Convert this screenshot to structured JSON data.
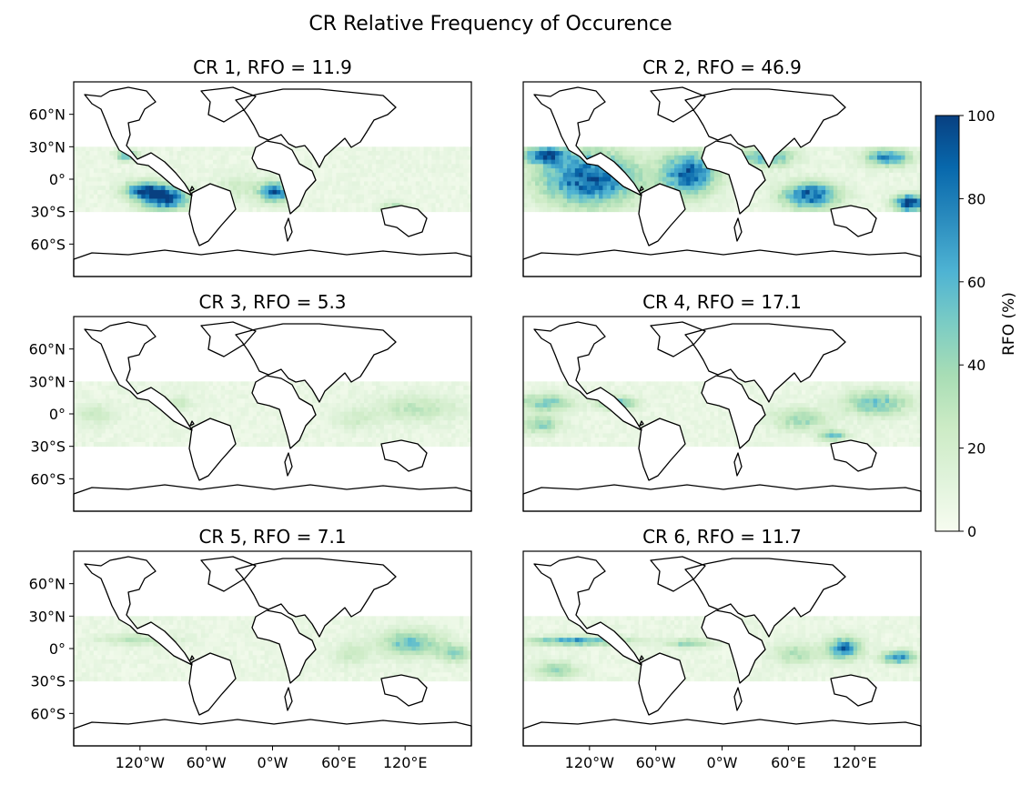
{
  "figure": {
    "suptitle": "CR Relative Frequency of Occurence"
  },
  "chart_data": {
    "type": "heatmap",
    "title": "CR Relative Frequency of Occurence",
    "x_extent": [
      -180,
      180
    ],
    "y_extent": [
      -90,
      90
    ],
    "data_lat_band": [
      -30,
      30
    ],
    "y_ticks": [
      60,
      30,
      0,
      -30,
      -60
    ],
    "y_tick_labels": [
      "60°N",
      "30°N",
      "0°",
      "30°S",
      "60°S"
    ],
    "x_ticks": [
      -120,
      -60,
      0,
      60,
      120
    ],
    "x_tick_labels": [
      "120°W",
      "60°W",
      "0°W",
      "60°E",
      "120°E"
    ],
    "colorbar": {
      "label": "RFO (%)",
      "range": [
        0,
        100
      ],
      "ticks": [
        0,
        20,
        40,
        60,
        80,
        100
      ],
      "colormap": "GnBu",
      "colors": [
        "#f7fcf0",
        "#e0f3db",
        "#ccebc5",
        "#a8ddb5",
        "#7bccc4",
        "#4eb3d3",
        "#2b8cbe",
        "#0868ac",
        "#084081"
      ]
    },
    "panels": [
      {
        "title": "CR 1, RFO = 11.9",
        "rfo": 11.9,
        "high_regions": [
          {
            "lon": -98,
            "lat": -18,
            "rlon": 22,
            "rlat": 10,
            "value": 95
          },
          {
            "lon": -115,
            "lat": -10,
            "rlon": 20,
            "rlat": 8,
            "value": 70
          },
          {
            "lon": 2,
            "lat": -12,
            "rlon": 14,
            "rlat": 9,
            "value": 80
          },
          {
            "lon": -132,
            "lat": 22,
            "rlon": 10,
            "rlat": 5,
            "value": 55
          },
          {
            "lon": 110,
            "lat": -26,
            "rlon": 12,
            "rlat": 4,
            "value": 30
          },
          {
            "lon": -30,
            "lat": -8,
            "rlon": 22,
            "rlat": 12,
            "value": 15
          }
        ]
      },
      {
        "title": "CR 2, RFO = 46.9",
        "rfo": 46.9,
        "high_regions": [
          {
            "lon": -120,
            "lat": 0,
            "rlon": 45,
            "rlat": 25,
            "value": 85
          },
          {
            "lon": -160,
            "lat": 22,
            "rlon": 20,
            "rlat": 8,
            "value": 80
          },
          {
            "lon": -30,
            "lat": 5,
            "rlon": 25,
            "rlat": 20,
            "value": 80
          },
          {
            "lon": 80,
            "lat": -15,
            "rlon": 25,
            "rlat": 12,
            "value": 85
          },
          {
            "lon": 170,
            "lat": -22,
            "rlon": 14,
            "rlat": 8,
            "value": 95
          },
          {
            "lon": 150,
            "lat": 20,
            "rlon": 20,
            "rlat": 8,
            "value": 70
          },
          {
            "lon": 40,
            "lat": 20,
            "rlon": 25,
            "rlat": 8,
            "value": 55
          }
        ]
      },
      {
        "title": "CR 3, RFO = 5.3",
        "rfo": 5.3,
        "high_regions": [
          {
            "lon": 130,
            "lat": 5,
            "rlon": 40,
            "rlat": 12,
            "value": 22
          },
          {
            "lon": -160,
            "lat": 0,
            "rlon": 20,
            "rlat": 10,
            "value": 18
          },
          {
            "lon": -85,
            "lat": 10,
            "rlon": 12,
            "rlat": 6,
            "value": 20
          },
          {
            "lon": 75,
            "lat": -5,
            "rlon": 20,
            "rlat": 10,
            "value": 14
          }
        ]
      },
      {
        "title": "CR 4, RFO = 17.1",
        "rfo": 17.1,
        "high_regions": [
          {
            "lon": -160,
            "lat": 10,
            "rlon": 25,
            "rlat": 8,
            "value": 42
          },
          {
            "lon": -95,
            "lat": 10,
            "rlon": 18,
            "rlat": 6,
            "value": 50
          },
          {
            "lon": -165,
            "lat": -10,
            "rlon": 20,
            "rlat": 8,
            "value": 38
          },
          {
            "lon": 140,
            "lat": 10,
            "rlon": 30,
            "rlat": 12,
            "value": 45
          },
          {
            "lon": 70,
            "lat": -5,
            "rlon": 25,
            "rlat": 10,
            "value": 35
          },
          {
            "lon": 100,
            "lat": -20,
            "rlon": 12,
            "rlat": 5,
            "value": 50
          }
        ]
      },
      {
        "title": "CR 5, RFO = 7.1",
        "rfo": 7.1,
        "high_regions": [
          {
            "lon": 125,
            "lat": 5,
            "rlon": 30,
            "rlat": 12,
            "value": 45
          },
          {
            "lon": 165,
            "lat": -5,
            "rlon": 15,
            "rlat": 8,
            "value": 38
          },
          {
            "lon": -120,
            "lat": 8,
            "rlon": 35,
            "rlat": 5,
            "value": 25
          },
          {
            "lon": 70,
            "lat": -5,
            "rlon": 15,
            "rlat": 10,
            "value": 20
          }
        ]
      },
      {
        "title": "CR 6, RFO = 11.7",
        "rfo": 11.7,
        "high_regions": [
          {
            "lon": -130,
            "lat": 7,
            "rlon": 45,
            "rlat": 4,
            "value": 62
          },
          {
            "lon": 110,
            "lat": 0,
            "rlon": 15,
            "rlat": 10,
            "value": 75
          },
          {
            "lon": 160,
            "lat": -8,
            "rlon": 15,
            "rlat": 6,
            "value": 70
          },
          {
            "lon": -150,
            "lat": -20,
            "rlon": 20,
            "rlat": 8,
            "value": 35
          },
          {
            "lon": -30,
            "lat": 5,
            "rlon": 20,
            "rlat": 4,
            "value": 38
          },
          {
            "lon": 65,
            "lat": -5,
            "rlon": 20,
            "rlat": 10,
            "value": 30
          }
        ]
      }
    ]
  }
}
